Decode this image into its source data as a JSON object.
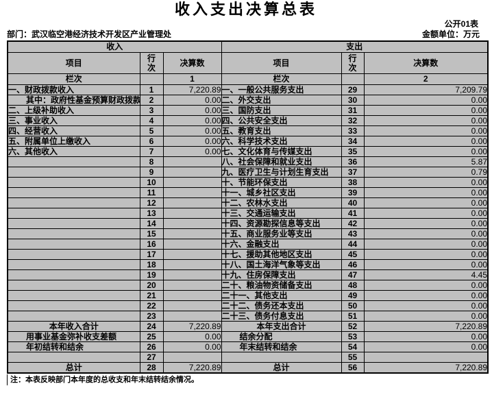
{
  "title": "收入支出决算总表",
  "meta": {
    "public_table_label": "公开01表",
    "department_label": "部门：武汉临空港经济技术开发区产业管理处",
    "unit_label": "金额单位：万元"
  },
  "colors": {
    "cell_gray": "#c0c0c0",
    "cell_white": "#ffffff",
    "border": "#000000"
  },
  "table": {
    "income_header": "收入",
    "expense_header": "支出",
    "col_item": "项目",
    "col_rownum": "行次",
    "col_amount": "决算数",
    "lanci_label": "栏次",
    "income_col_index": "1",
    "expense_col_index": "2",
    "rows": [
      {
        "li": "一、财政拨款收入",
        "ls": "normal",
        "lr": "1",
        "lv": "7,220.89",
        "ri": "一、一般公共服务支出",
        "rs": "normal",
        "rr": "29",
        "rv": "7,209.79"
      },
      {
        "li": "其中：政府性基金预算财政拨款",
        "ls": "indent",
        "lr": "2",
        "lv": "0.00",
        "ri": "二、外交支出",
        "rs": "normal",
        "rr": "30",
        "rv": "0.00"
      },
      {
        "li": "二、上级补助收入",
        "ls": "normal",
        "lr": "3",
        "lv": "0.00",
        "ri": "三、国防支出",
        "rs": "normal",
        "rr": "31",
        "rv": "0.00"
      },
      {
        "li": "三、事业收入",
        "ls": "normal",
        "lr": "4",
        "lv": "0.00",
        "ri": "四、公共安全支出",
        "rs": "normal",
        "rr": "32",
        "rv": "0.00"
      },
      {
        "li": "四、经营收入",
        "ls": "normal",
        "lr": "5",
        "lv": "0.00",
        "ri": "五、教育支出",
        "rs": "normal",
        "rr": "33",
        "rv": "0.00"
      },
      {
        "li": "五、附属单位上缴收入",
        "ls": "normal",
        "lr": "6",
        "lv": "0.00",
        "ri": "六、科学技术支出",
        "rs": "normal",
        "rr": "34",
        "rv": "0.00"
      },
      {
        "li": "六、其他收入",
        "ls": "normal",
        "lr": "7",
        "lv": "0.00",
        "ri": "七、文化体育与传媒支出",
        "rs": "normal",
        "rr": "35",
        "rv": "0.00"
      },
      {
        "li": "",
        "ls": "normal",
        "lr": "8",
        "lv": "",
        "ri": "八、社会保障和就业支出",
        "rs": "normal",
        "rr": "36",
        "rv": "5.87"
      },
      {
        "li": "",
        "ls": "normal",
        "lr": "9",
        "lv": "",
        "ri": "九、医疗卫生与计划生育支出",
        "rs": "normal",
        "rr": "37",
        "rv": "0.79"
      },
      {
        "li": "",
        "ls": "normal",
        "lr": "10",
        "lv": "",
        "ri": "十、节能环保支出",
        "rs": "normal",
        "rr": "38",
        "rv": "0.00"
      },
      {
        "li": "",
        "ls": "normal",
        "lr": "11",
        "lv": "",
        "ri": "十一、城乡社区支出",
        "rs": "normal",
        "rr": "39",
        "rv": "0.00"
      },
      {
        "li": "",
        "ls": "normal",
        "lr": "12",
        "lv": "",
        "ri": "十二、农林水支出",
        "rs": "normal",
        "rr": "40",
        "rv": "0.00"
      },
      {
        "li": "",
        "ls": "normal",
        "lr": "13",
        "lv": "",
        "ri": "十三、交通运输支出",
        "rs": "normal",
        "rr": "41",
        "rv": "0.00"
      },
      {
        "li": "",
        "ls": "normal",
        "lr": "14",
        "lv": "",
        "ri": "十四、资源勘探信息等支出",
        "rs": "normal",
        "rr": "42",
        "rv": "0.00"
      },
      {
        "li": "",
        "ls": "normal",
        "lr": "15",
        "lv": "",
        "ri": "十五、商业服务业等支出",
        "rs": "normal",
        "rr": "43",
        "rv": "0.00"
      },
      {
        "li": "",
        "ls": "normal",
        "lr": "16",
        "lv": "",
        "ri": "十六、金融支出",
        "rs": "normal",
        "rr": "44",
        "rv": "0.00"
      },
      {
        "li": "",
        "ls": "normal",
        "lr": "17",
        "lv": "",
        "ri": "十七、援助其他地区支出",
        "rs": "normal",
        "rr": "45",
        "rv": "0.00"
      },
      {
        "li": "",
        "ls": "normal",
        "lr": "18",
        "lv": "",
        "ri": "十八、国土海洋气象等支出",
        "rs": "normal",
        "rr": "46",
        "rv": "0.00"
      },
      {
        "li": "",
        "ls": "normal",
        "lr": "19",
        "lv": "",
        "ri": "十九、住房保障支出",
        "rs": "normal",
        "rr": "47",
        "rv": "4.45"
      },
      {
        "li": "",
        "ls": "normal",
        "lr": "20",
        "lv": "",
        "ri": "二十、粮油物资储备支出",
        "rs": "normal",
        "rr": "48",
        "rv": "0.00"
      },
      {
        "li": "",
        "ls": "normal",
        "lr": "21",
        "lv": "",
        "ri": "二十一、其他支出",
        "rs": "normal",
        "rr": "49",
        "rv": "0.00"
      },
      {
        "li": "",
        "ls": "normal",
        "lr": "22",
        "lv": "",
        "ri": "二十二、债务还本支出",
        "rs": "normal",
        "rr": "50",
        "rv": "0.00"
      },
      {
        "li": "",
        "ls": "normal",
        "lr": "23",
        "lv": "",
        "ri": "二十三、债务付息支出",
        "rs": "normal",
        "rr": "51",
        "rv": "0.00"
      },
      {
        "li": "本年收入合计",
        "ls": "total",
        "lr": "24",
        "lv": "7,220.89",
        "ri": "本年支出合计",
        "rs": "total",
        "rr": "52",
        "rv": "7,220.89"
      },
      {
        "li": "用事业基金弥补收支差额",
        "ls": "indent",
        "lr": "25",
        "lv": "0.00",
        "ri": "结余分配",
        "rs": "indent",
        "rr": "53",
        "rv": "0.00"
      },
      {
        "li": "年初结转和结余",
        "ls": "indent",
        "lr": "26",
        "lv": "0.00",
        "ri": "年末结转和结余",
        "rs": "indent",
        "rr": "54",
        "rv": "0.00"
      },
      {
        "li": "",
        "ls": "normal",
        "lr": "27",
        "lv": "",
        "ri": "",
        "rs": "normal",
        "rr": "55",
        "rv": ""
      },
      {
        "li": "总计",
        "ls": "total",
        "lr": "28",
        "lv": "7,220.89",
        "ri": "总计",
        "rs": "total",
        "rr": "56",
        "rv": "7,220.89"
      }
    ]
  },
  "note": "注：本表反映部门本年度的总收支和年末结转结余情况。"
}
